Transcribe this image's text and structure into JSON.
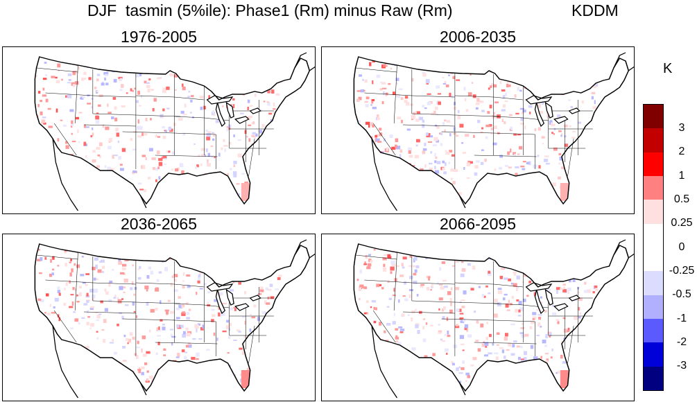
{
  "title": {
    "main": "DJF  tasmin (5%ile): Phase1 (Rm) minus Raw (Rm)",
    "model": "KDDM"
  },
  "panels": [
    {
      "period": "1976-2005"
    },
    {
      "period": "2006-2035"
    },
    {
      "period": "2036-2065"
    },
    {
      "period": "2066-2095"
    }
  ],
  "colorbar": {
    "unit": "K",
    "labels": [
      "3",
      "2",
      "1",
      "0.5",
      "0.25",
      "0",
      "-0.25",
      "-0.5",
      "-1",
      "-2",
      "-3"
    ],
    "colors": [
      "#800000",
      "#c20000",
      "#ff0000",
      "#ff8080",
      "#ffe0e0",
      "#ffffff",
      "#ffffff",
      "#dcdcff",
      "#b0b0ff",
      "#5a5aff",
      "#0000d8",
      "#000080"
    ]
  }
}
